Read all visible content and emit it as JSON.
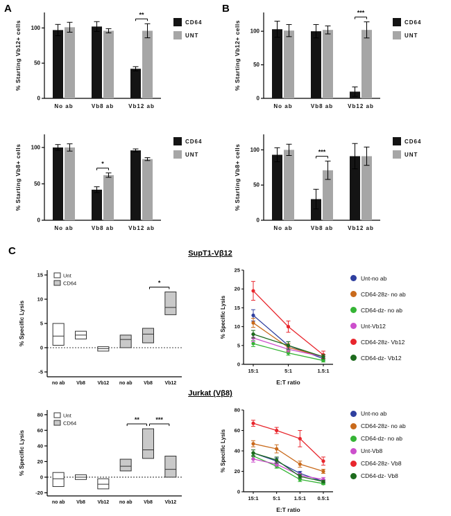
{
  "figure": {
    "panel_a_label": "A",
    "panel_b_label": "B",
    "panel_c_label": "C",
    "supt1_title": "SupT1-Vβ12",
    "jurkat_title": "Jurkat (Vβ8)"
  },
  "colors": {
    "cd64_bar": "#141414",
    "unt_bar": "#a6a6a6",
    "box_unt_fill": "#ffffff",
    "box_cd64_fill": "#c9c9c9"
  },
  "chart_data": [
    {
      "id": "panel-a-top",
      "type": "bar",
      "ylabel": "% Starting Vb12+ cells",
      "categories": [
        "No ab",
        "Vb8 ab",
        "Vb12 ab"
      ],
      "ylim": [
        0,
        122
      ],
      "yticks": [
        0,
        50,
        100
      ],
      "series": [
        {
          "name": "CD64",
          "color": "#141414",
          "values": [
            97,
            102,
            42
          ],
          "errors": [
            8,
            7,
            3
          ]
        },
        {
          "name": "UNT",
          "color": "#a6a6a6",
          "values": [
            101,
            96,
            96
          ],
          "errors": [
            7,
            3,
            10
          ]
        }
      ],
      "significance": [
        {
          "group": 2,
          "label": "**"
        }
      ]
    },
    {
      "id": "panel-b-top",
      "type": "bar",
      "ylabel": "% Starting Vb12+ cells",
      "categories": [
        "No ab",
        "Vb8 ab",
        "Vb12 ab"
      ],
      "ylim": [
        0,
        128
      ],
      "yticks": [
        0,
        50,
        100
      ],
      "series": [
        {
          "name": "CD64",
          "color": "#141414",
          "values": [
            103,
            100,
            10
          ],
          "errors": [
            12,
            10,
            7
          ]
        },
        {
          "name": "UNT",
          "color": "#a6a6a6",
          "values": [
            101,
            102,
            102
          ],
          "errors": [
            9,
            6,
            12
          ]
        }
      ],
      "significance": [
        {
          "group": 2,
          "label": "***"
        }
      ]
    },
    {
      "id": "panel-a-bottom",
      "type": "bar",
      "ylabel": "% Starting Vb8+ cells",
      "categories": [
        "No ab",
        "Vb8 ab",
        "Vb12 ab"
      ],
      "ylim": [
        0,
        118
      ],
      "yticks": [
        0,
        50,
        100
      ],
      "series": [
        {
          "name": "CD64",
          "color": "#141414",
          "values": [
            100,
            42,
            96
          ],
          "errors": [
            4,
            4,
            2
          ]
        },
        {
          "name": "UNT",
          "color": "#a6a6a6",
          "values": [
            100,
            62,
            84
          ],
          "errors": [
            5,
            3,
            2
          ]
        }
      ],
      "significance": [
        {
          "group": 1,
          "label": "*"
        }
      ]
    },
    {
      "id": "panel-b-bottom",
      "type": "bar",
      "ylabel": "% Starting Vb8+ cells",
      "categories": [
        "No ab",
        "Vb8 ab",
        "Vb12 ab"
      ],
      "ylim": [
        0,
        122
      ],
      "yticks": [
        0,
        50,
        100
      ],
      "series": [
        {
          "name": "CD64",
          "color": "#141414",
          "values": [
            93,
            30,
            91
          ],
          "errors": [
            10,
            14,
            18
          ]
        },
        {
          "name": "UNT",
          "color": "#a6a6a6",
          "values": [
            100,
            71,
            91
          ],
          "errors": [
            8,
            13,
            13
          ]
        }
      ],
      "significance": [
        {
          "group": 1,
          "label": "***"
        }
      ]
    },
    {
      "id": "supt1-box",
      "type": "box",
      "ylabel": "% Specific Lysis",
      "categories": [
        "no ab",
        "Vb8",
        "Vb12",
        "no ab",
        "Vb8",
        "Vb12"
      ],
      "ylim": [
        -6,
        16
      ],
      "yticks": [
        -5,
        0,
        5,
        10,
        15
      ],
      "zero_line": true,
      "legend": [
        {
          "label": "Unt",
          "fill": "#ffffff"
        },
        {
          "label": "CD64",
          "fill": "#c9c9c9"
        }
      ],
      "boxes": [
        {
          "series": "Unt",
          "lo": 0.5,
          "hi": 5.0,
          "med": 2.4,
          "fill": "#ffffff"
        },
        {
          "series": "Unt",
          "lo": 1.8,
          "hi": 3.4,
          "med": 2.6,
          "fill": "#ffffff"
        },
        {
          "series": "Unt",
          "lo": -0.7,
          "hi": 0.2,
          "med": -0.2,
          "fill": "#ffffff"
        },
        {
          "series": "CD64",
          "lo": 0.0,
          "hi": 2.6,
          "med": 1.7,
          "fill": "#c9c9c9"
        },
        {
          "series": "CD64",
          "lo": 1.0,
          "hi": 4.0,
          "med": 2.8,
          "fill": "#c9c9c9"
        },
        {
          "series": "CD64",
          "lo": 6.8,
          "hi": 11.5,
          "med": 8.3,
          "fill": "#c9c9c9"
        }
      ],
      "significance": [
        {
          "from": 4,
          "to": 5,
          "label": "*"
        }
      ]
    },
    {
      "id": "supt1-line",
      "type": "line",
      "ylabel": "% Specific Lysis",
      "xlabel": "E:T ratio",
      "categories": [
        "15:1",
        "5:1",
        "1.5:1"
      ],
      "ylim": [
        0,
        25
      ],
      "yticks": [
        0,
        5,
        10,
        15,
        20,
        25
      ],
      "series": [
        {
          "name": "Unt-no ab",
          "color": "#2f3f9f",
          "values": [
            13,
            5,
            1.5
          ],
          "errors": [
            1.5,
            1,
            0.5
          ]
        },
        {
          "name": "CD64-28z- no ab",
          "color": "#c96a1b",
          "values": [
            11,
            4.5,
            2
          ],
          "errors": [
            1.2,
            1,
            0.5
          ]
        },
        {
          "name": "CD64-dz- no ab",
          "color": "#35b435",
          "values": [
            5.5,
            3,
            1
          ],
          "errors": [
            0.8,
            0.6,
            0.4
          ]
        },
        {
          "name": "Unt-Vb12",
          "color": "#cc4fcc",
          "values": [
            7,
            4,
            2
          ],
          "errors": [
            1,
            0.7,
            0.5
          ]
        },
        {
          "name": "CD64-28z- Vb12",
          "color": "#e8262d",
          "values": [
            19.5,
            10,
            2.5
          ],
          "errors": [
            2.5,
            1.5,
            1
          ]
        },
        {
          "name": "CD64-dz- Vb12",
          "color": "#1d6b1d",
          "values": [
            8,
            5,
            2
          ],
          "errors": [
            1,
            1,
            0.6
          ]
        }
      ]
    },
    {
      "id": "jurkat-box",
      "type": "box",
      "ylabel": "% Specific Lysis",
      "categories": [
        "no ab",
        "Vb8",
        "Vb12",
        "no ab",
        "Vb8",
        "Vb12"
      ],
      "ylim": [
        -24,
        86
      ],
      "yticks": [
        -20,
        0,
        20,
        40,
        60,
        80
      ],
      "zero_line": true,
      "legend": [
        {
          "label": "Unt",
          "fill": "#ffffff"
        },
        {
          "label": "CD64",
          "fill": "#c9c9c9"
        }
      ],
      "boxes": [
        {
          "series": "Unt",
          "lo": -12,
          "hi": 6,
          "med": -2,
          "fill": "#ffffff"
        },
        {
          "series": "Unt",
          "lo": -3,
          "hi": 3,
          "med": 0,
          "fill": "#ffffff"
        },
        {
          "series": "Unt",
          "lo": -15,
          "hi": -2,
          "med": -9,
          "fill": "#ffffff"
        },
        {
          "series": "CD64",
          "lo": 8,
          "hi": 23,
          "med": 14,
          "fill": "#c9c9c9"
        },
        {
          "series": "CD64",
          "lo": 24,
          "hi": 62,
          "med": 35,
          "fill": "#c9c9c9"
        },
        {
          "series": "CD64",
          "lo": 0,
          "hi": 27,
          "med": 10,
          "fill": "#c9c9c9"
        }
      ],
      "significance": [
        {
          "from": 3,
          "to": 4,
          "label": "**"
        },
        {
          "from": 4,
          "to": 5,
          "label": "***"
        }
      ]
    },
    {
      "id": "jurkat-line",
      "type": "line",
      "ylabel": "% Specific Lysis",
      "xlabel": "E:T ratio",
      "categories": [
        "15:1",
        "5:1",
        "1.5:1",
        "0.5:1"
      ],
      "ylim": [
        0,
        80
      ],
      "yticks": [
        0,
        20,
        40,
        60,
        80
      ],
      "series": [
        {
          "name": "Unt-no ab",
          "color": "#2f3f9f",
          "values": [
            38,
            30,
            18,
            10
          ],
          "errors": [
            3,
            3,
            2,
            2
          ]
        },
        {
          "name": "CD64-28z- no ab",
          "color": "#c96a1b",
          "values": [
            47,
            42,
            27,
            20
          ],
          "errors": [
            3,
            4,
            3,
            2
          ]
        },
        {
          "name": "CD64-dz- no ab",
          "color": "#35b435",
          "values": [
            35,
            25,
            12,
            8
          ],
          "errors": [
            3,
            2,
            2,
            1
          ]
        },
        {
          "name": "Unt-Vb8",
          "color": "#cc4fcc",
          "values": [
            32,
            27,
            16,
            12
          ],
          "errors": [
            3,
            2,
            2,
            2
          ]
        },
        {
          "name": "CD64-28z- Vb8",
          "color": "#e8262d",
          "values": [
            67,
            60,
            52,
            30
          ],
          "errors": [
            3,
            3,
            8,
            4
          ]
        },
        {
          "name": "CD64-dz- Vb8",
          "color": "#1d6b1d",
          "values": [
            38,
            31,
            15,
            10
          ],
          "errors": [
            3,
            3,
            2,
            1
          ]
        }
      ]
    }
  ]
}
